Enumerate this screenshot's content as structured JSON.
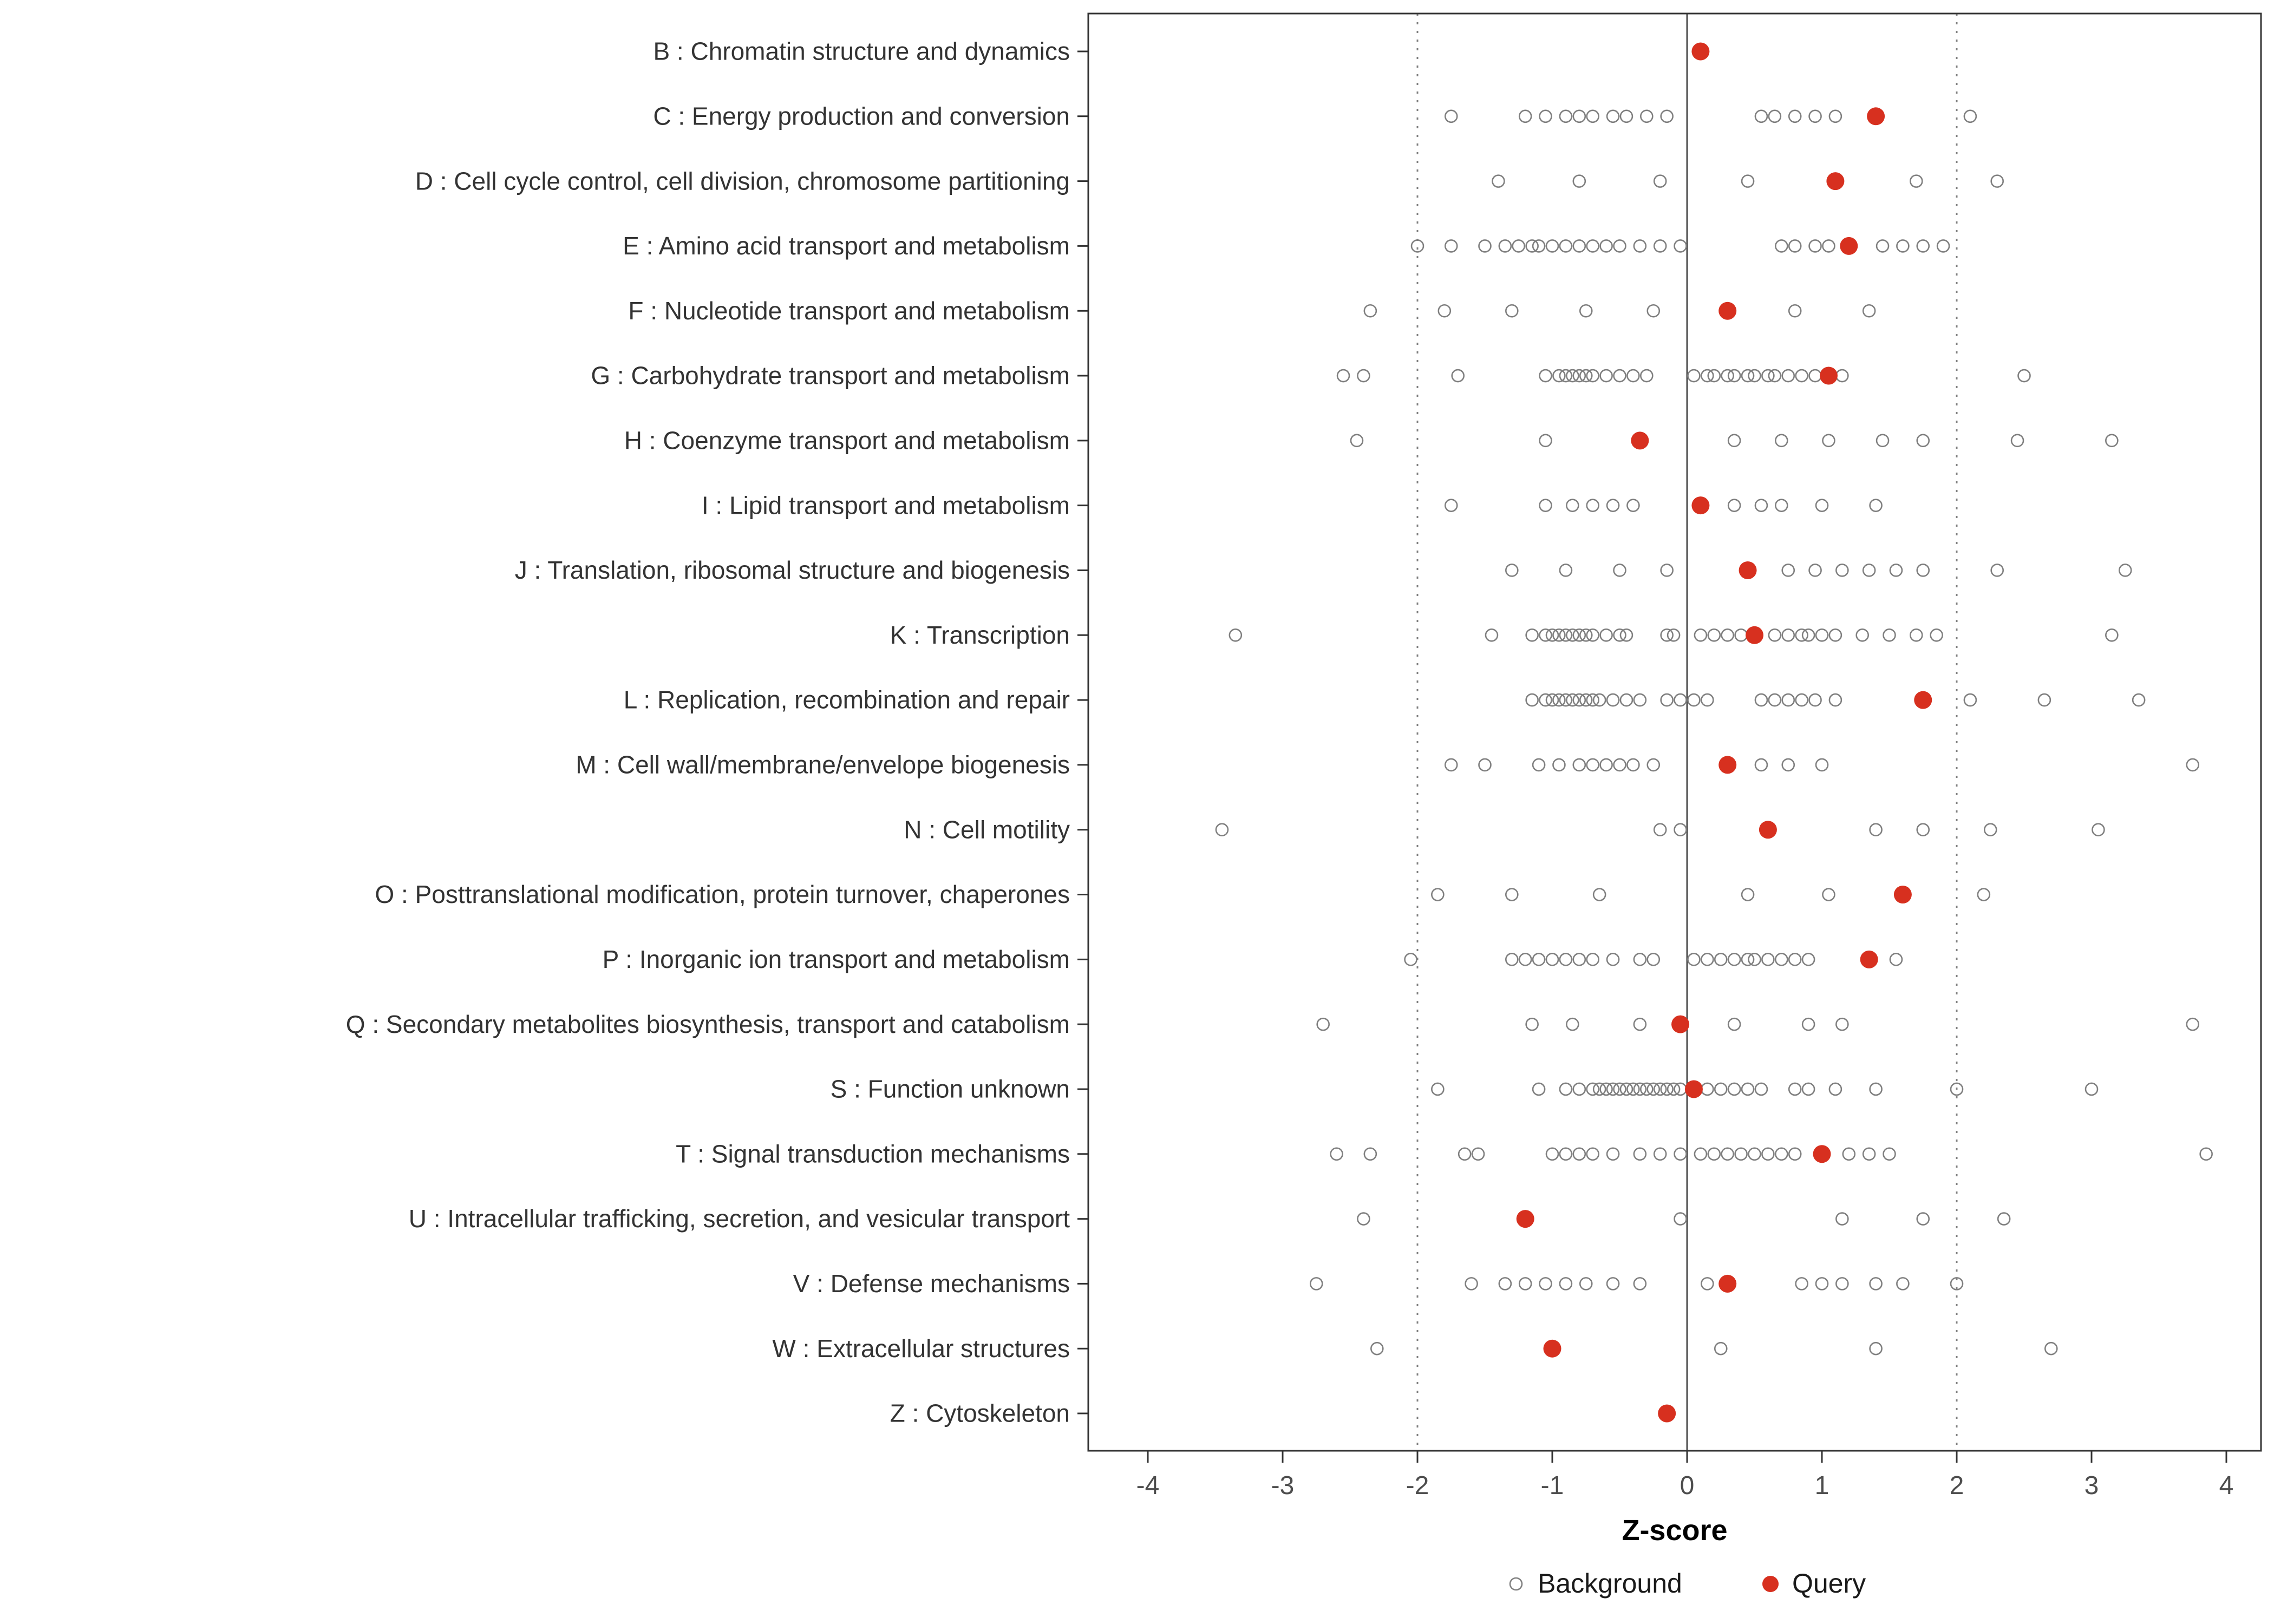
{
  "chart_data": {
    "type": "scatter",
    "title": "",
    "xlabel": "Z-score",
    "ylabel": "",
    "x_ticks": [
      -4,
      -3,
      -2,
      -1,
      0,
      1,
      2,
      3,
      4
    ],
    "xlim": [
      -4.45,
      4.3
    ],
    "grid": false,
    "reference_lines": {
      "solid": [
        0
      ],
      "dashed": [
        -2,
        2
      ]
    },
    "legend": {
      "position": "bottom",
      "background_label": "Background",
      "query_label": "Query"
    },
    "colors": {
      "query_fill": "#D7301F",
      "background_stroke": "#7F7F7F",
      "axis_tick_text": "#4D4D4D",
      "category_text": "#333333",
      "solid_line": "#4D4D4D",
      "dashed_line": "#7F7F7F",
      "panel_border": "#333333"
    },
    "categories": [
      {
        "label": "B : Chromatin structure and dynamics",
        "query": 0.1,
        "background": []
      },
      {
        "label": "C : Energy production and conversion",
        "query": 1.4,
        "background": [
          -1.75,
          -1.2,
          -1.05,
          -0.9,
          -0.8,
          -0.7,
          -0.55,
          -0.45,
          -0.3,
          -0.15,
          0.55,
          0.65,
          0.8,
          0.95,
          1.1,
          2.1
        ]
      },
      {
        "label": "D : Cell cycle control, cell division, chromosome partitioning",
        "query": 1.1,
        "background": [
          -1.4,
          -0.8,
          -0.2,
          0.45,
          1.7,
          2.3
        ]
      },
      {
        "label": "E : Amino acid transport and metabolism",
        "query": 1.2,
        "background": [
          -2.0,
          -1.75,
          -1.5,
          -1.35,
          -1.25,
          -1.15,
          -1.1,
          -1.0,
          -0.9,
          -0.8,
          -0.7,
          -0.6,
          -0.5,
          -0.35,
          -0.2,
          -0.05,
          0.7,
          0.8,
          0.95,
          1.05,
          1.45,
          1.6,
          1.75,
          1.9
        ]
      },
      {
        "label": "F : Nucleotide transport and metabolism",
        "query": 0.3,
        "background": [
          -2.35,
          -1.8,
          -1.3,
          -0.75,
          -0.25,
          0.8,
          1.35
        ]
      },
      {
        "label": "G : Carbohydrate transport and metabolism",
        "query": 1.05,
        "background": [
          -2.55,
          -2.4,
          -1.7,
          -1.05,
          -0.95,
          -0.9,
          -0.85,
          -0.8,
          -0.75,
          -0.7,
          -0.6,
          -0.5,
          -0.4,
          -0.3,
          0.05,
          0.15,
          0.2,
          0.3,
          0.35,
          0.45,
          0.5,
          0.6,
          0.65,
          0.75,
          0.85,
          0.95,
          1.15,
          2.5
        ]
      },
      {
        "label": "H : Coenzyme transport and metabolism",
        "query": -0.35,
        "background": [
          -2.45,
          -1.05,
          0.35,
          0.7,
          1.05,
          1.45,
          1.75,
          2.45,
          3.15
        ]
      },
      {
        "label": "I : Lipid transport and metabolism",
        "query": 0.1,
        "background": [
          -1.75,
          -1.05,
          -0.85,
          -0.7,
          -0.55,
          -0.4,
          0.35,
          0.55,
          0.7,
          1.0,
          1.4
        ]
      },
      {
        "label": "J : Translation, ribosomal structure and biogenesis",
        "query": 0.45,
        "background": [
          -1.3,
          -0.9,
          -0.5,
          -0.15,
          0.75,
          0.95,
          1.15,
          1.35,
          1.55,
          1.75,
          2.3,
          3.25
        ]
      },
      {
        "label": "K : Transcription",
        "query": 0.5,
        "background": [
          -3.35,
          -1.45,
          -1.15,
          -1.05,
          -1.0,
          -0.95,
          -0.9,
          -0.85,
          -0.8,
          -0.75,
          -0.7,
          -0.6,
          -0.5,
          -0.45,
          -0.15,
          -0.1,
          0.1,
          0.2,
          0.3,
          0.4,
          0.65,
          0.75,
          0.85,
          0.9,
          1.0,
          1.1,
          1.3,
          1.5,
          1.7,
          1.85,
          3.15
        ]
      },
      {
        "label": "L : Replication, recombination and repair",
        "query": 1.75,
        "background": [
          -1.15,
          -1.05,
          -1.0,
          -0.95,
          -0.9,
          -0.85,
          -0.8,
          -0.75,
          -0.7,
          -0.65,
          -0.55,
          -0.45,
          -0.35,
          -0.15,
          -0.05,
          0.05,
          0.15,
          0.55,
          0.65,
          0.75,
          0.85,
          0.95,
          1.1,
          2.1,
          2.65,
          3.35
        ]
      },
      {
        "label": "M : Cell wall/membrane/envelope biogenesis",
        "query": 0.3,
        "background": [
          -1.75,
          -1.5,
          -1.1,
          -0.95,
          -0.8,
          -0.7,
          -0.6,
          -0.5,
          -0.4,
          -0.25,
          0.55,
          0.75,
          1.0,
          3.75
        ]
      },
      {
        "label": "N : Cell motility",
        "query": 0.6,
        "background": [
          -3.45,
          -0.2,
          -0.05,
          1.4,
          1.75,
          2.25,
          3.05
        ]
      },
      {
        "label": "O : Posttranslational modification, protein turnover, chaperones",
        "query": 1.6,
        "background": [
          -1.85,
          -1.3,
          -0.65,
          0.45,
          1.05,
          2.2
        ]
      },
      {
        "label": "P : Inorganic ion transport and metabolism",
        "query": 1.35,
        "background": [
          -2.05,
          -1.3,
          -1.2,
          -1.1,
          -1.0,
          -0.9,
          -0.8,
          -0.7,
          -0.55,
          -0.35,
          -0.25,
          0.05,
          0.15,
          0.25,
          0.35,
          0.45,
          0.5,
          0.6,
          0.7,
          0.8,
          0.9,
          1.55
        ]
      },
      {
        "label": "Q : Secondary metabolites biosynthesis, transport and catabolism",
        "query": -0.05,
        "background": [
          -2.7,
          -1.15,
          -0.85,
          -0.35,
          0.35,
          0.9,
          1.15,
          3.75
        ]
      },
      {
        "label": "S : Function unknown",
        "query": 0.05,
        "background": [
          -1.85,
          -1.1,
          -0.9,
          -0.8,
          -0.7,
          -0.65,
          -0.6,
          -0.55,
          -0.5,
          -0.45,
          -0.4,
          -0.35,
          -0.3,
          -0.25,
          -0.2,
          -0.15,
          -0.1,
          -0.05,
          0.15,
          0.25,
          0.35,
          0.45,
          0.55,
          0.8,
          0.9,
          1.1,
          1.4,
          2.0,
          3.0
        ]
      },
      {
        "label": "T : Signal transduction mechanisms",
        "query": 1.0,
        "background": [
          -2.6,
          -2.35,
          -1.65,
          -1.55,
          -1.0,
          -0.9,
          -0.8,
          -0.7,
          -0.55,
          -0.35,
          -0.2,
          -0.05,
          0.1,
          0.2,
          0.3,
          0.4,
          0.5,
          0.6,
          0.7,
          0.8,
          1.2,
          1.35,
          1.5,
          3.85
        ]
      },
      {
        "label": "U : Intracellular trafficking, secretion, and vesicular transport",
        "query": -1.2,
        "background": [
          -2.4,
          -0.05,
          1.15,
          1.75,
          2.35
        ]
      },
      {
        "label": "V : Defense mechanisms",
        "query": 0.3,
        "background": [
          -2.75,
          -1.6,
          -1.35,
          -1.2,
          -1.05,
          -0.9,
          -0.75,
          -0.55,
          -0.35,
          0.15,
          0.85,
          1.0,
          1.15,
          1.4,
          1.6,
          2.0
        ]
      },
      {
        "label": "W : Extracellular structures",
        "query": -1.0,
        "background": [
          -2.3,
          0.25,
          1.4,
          2.7
        ]
      },
      {
        "label": "Z : Cytoskeleton",
        "query": -0.15,
        "background": []
      }
    ]
  }
}
